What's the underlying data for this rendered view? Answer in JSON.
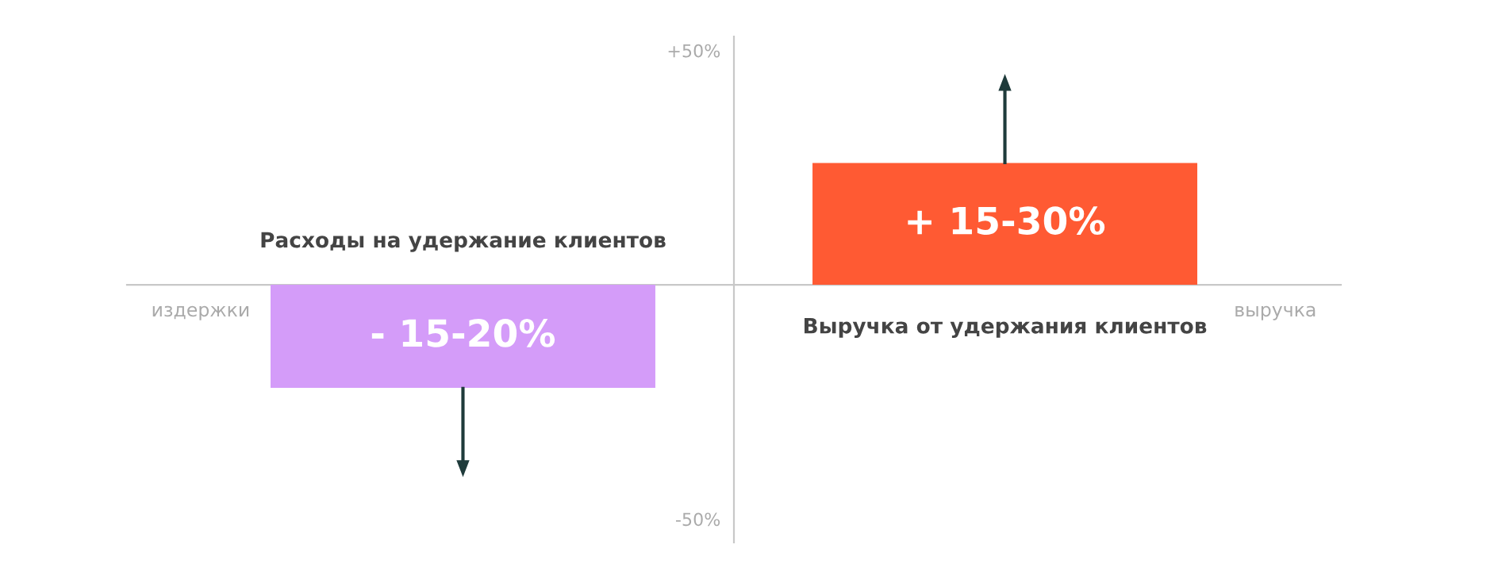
{
  "chart_data": {
    "type": "bar",
    "categories": [
      "Расходы на удержание клиентов",
      "Выручка от удержания клиентов"
    ],
    "values": [
      -22,
      26
    ],
    "colors": [
      "#d49cf9",
      "#ff5a33"
    ],
    "ylim": [
      -55,
      53
    ],
    "yticks": [
      {
        "value": 50,
        "label": "+50%"
      },
      {
        "value": -50,
        "label": "-50%"
      }
    ],
    "annotations": [
      "издержки",
      "выручка",
      "- 15-20%",
      "+ 15-30%"
    ],
    "grid": false,
    "legend": false
  }
}
